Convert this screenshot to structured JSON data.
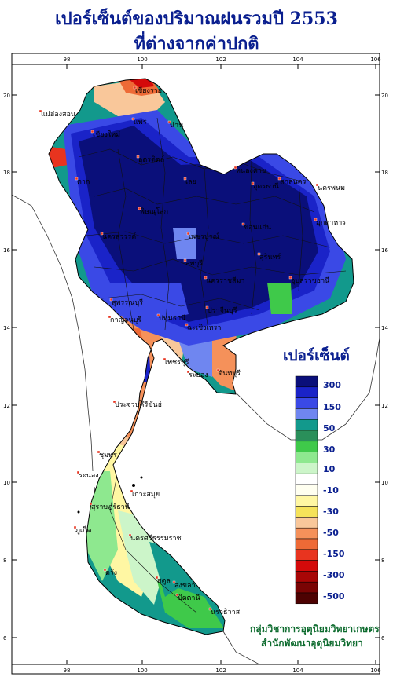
{
  "title": {
    "line1": "เปอร์เซ็นต์ของปริมาณฝนรวมปี 2553",
    "line2": "ที่ต่างจากค่าปกติ"
  },
  "axes": {
    "lon_ticks": [
      "98",
      "100",
      "102",
      "104",
      "106"
    ],
    "lat_ticks": [
      "20",
      "18",
      "16",
      "14",
      "12",
      "10",
      "8",
      "6"
    ]
  },
  "legend": {
    "title": "เปอร์เซ็นต์",
    "labels": [
      "300",
      "150",
      "50",
      "30",
      "10",
      "-10",
      "-30",
      "-50",
      "-150",
      "-300",
      "-500"
    ],
    "colors": [
      "#0a0f7a",
      "#1a23c8",
      "#3a49e6",
      "#6f86f0",
      "#12998c",
      "#2a8f5a",
      "#3fc94a",
      "#8ee88f",
      "#ccf5c9",
      "#ffffff",
      "#fffff0",
      "#fff7a3",
      "#f5e25a",
      "#f9c79a",
      "#f5915a",
      "#ee6a36",
      "#e8341f",
      "#d40a0a",
      "#a80606",
      "#7a0404",
      "#4d0202"
    ]
  },
  "places": [
    "เชียงราย",
    "แม่ฮ่องสอน",
    "เชียงใหม่",
    "น่าน",
    "แพร่",
    "หนองคาย",
    "อุตรดิตถ์",
    "นครพนม",
    "สกลนคร",
    "มุกดาหาร",
    "ตาก",
    "พิษณุโลก",
    "เลย",
    "ขอนแก่น",
    "อุดรธานี",
    "เพชรบูรณ์",
    "นครสวรรค์",
    "อุบลราชธานี",
    "นครราชสีมา",
    "สุรินทร์",
    "ลพบุรี",
    "สุพรรณบุรี",
    "กาญจนบุรี",
    "ปทุมธานี",
    "ปราจีนบุรี",
    "ฉะเชิงเทรา",
    "เพชรบุรี",
    "ระยอง",
    "จันทบุรี",
    "ประจวบคีรีขันธ์",
    "ชุมพร",
    "ระนอง",
    "เกาะสมุย",
    "สุราษฎร์ธานี",
    "ภูเก็ต",
    "นครศรีธรรมราช",
    "สงขลา",
    "ปัตตานี",
    "นราธิวาส",
    "ตรัง",
    "สตูล"
  ],
  "credit": {
    "line1": "กลุ่มวิชาการอุตุนิยมวิทยาเกษตร",
    "line2": "สำนักพัฒนาอุตุนิยมวิทยา"
  }
}
